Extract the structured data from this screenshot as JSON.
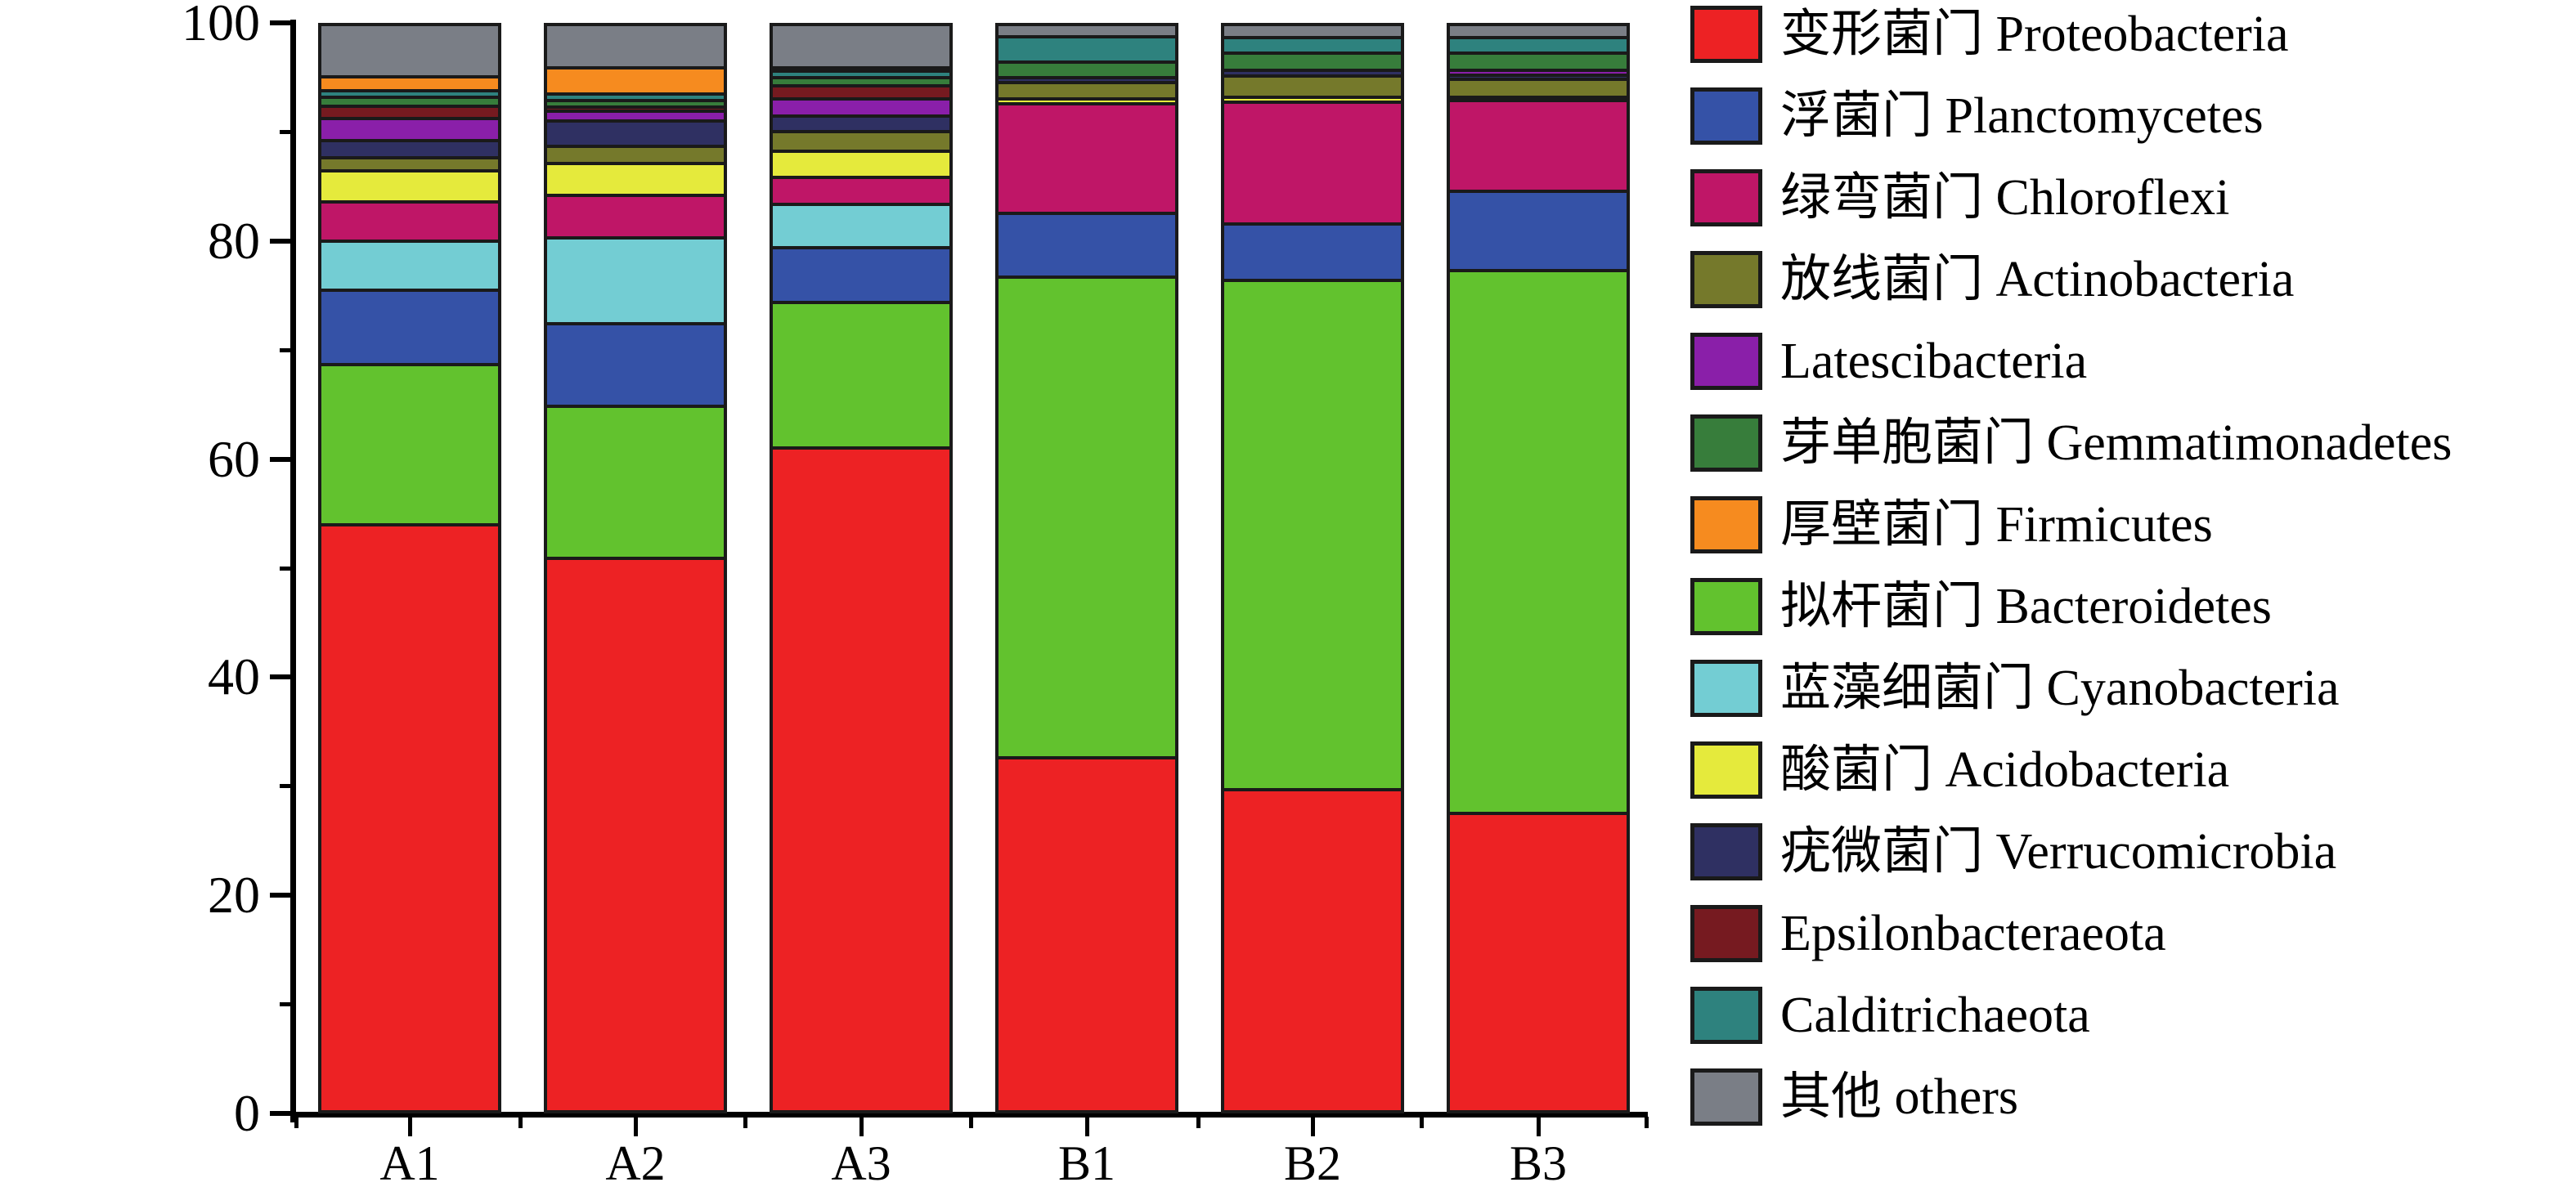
{
  "chart_data": {
    "type": "bar",
    "stacked": true,
    "unit": "percent",
    "title": "",
    "xlabel": "",
    "ylabel": "",
    "grid": false,
    "legend_position": "right",
    "categories": [
      "A1",
      "A2",
      "A3",
      "B1",
      "B2",
      "B3"
    ],
    "y_axis": {
      "min": 0,
      "max": 100,
      "major_ticks": [
        0,
        20,
        40,
        60,
        80,
        100
      ],
      "minor_tick_step": 10,
      "tick_labels": [
        "0",
        "20",
        "40",
        "60",
        "80",
        "100"
      ]
    },
    "series": [
      {
        "name_zh": "变形菌门",
        "name_en": "Proteobacteria",
        "label": "变形菌门 Proteobacteria",
        "color": "#ED2224",
        "values": [
          54.0,
          50.9,
          61.0,
          32.6,
          29.65,
          27.5
        ]
      },
      {
        "name_zh": "浮菌门",
        "name_en": "Planctomycetes",
        "label": "浮菌门 Planctomycetes",
        "color": "#3552A7",
        "values": [
          6.75,
          7.55,
          5.0,
          5.85,
          5.2,
          7.3
        ]
      },
      {
        "name_zh": "绿弯菌门",
        "name_en": "Chloroflexi",
        "label": "绿弯菌门 Chloroflexi",
        "color": "#BF1667",
        "values": [
          3.55,
          3.9,
          2.5,
          10.05,
          11.2,
          8.3
        ]
      },
      {
        "name_zh": "放线菌门",
        "name_en": "Actinobacteria",
        "label": "放线菌门 Actinobacteria",
        "color": "#75792B",
        "values": [
          1.15,
          1.6,
          1.75,
          1.5,
          1.9,
          1.7
        ]
      },
      {
        "name_zh": "",
        "name_en": "Latescibacteria",
        "label": "Latescibacteria",
        "color": "#8A1FA9",
        "values": [
          2.05,
          0.9,
          1.55,
          0,
          0,
          0.45
        ]
      },
      {
        "name_zh": "芽单胞菌门",
        "name_en": "Gemmatimonadetes",
        "label": "芽单胞菌门 Gemmatimonadetes",
        "color": "#377D3B",
        "values": [
          0.85,
          0.65,
          0.8,
          1.4,
          1.55,
          1.55
        ]
      },
      {
        "name_zh": "厚壁菌门",
        "name_en": "Firmicutes",
        "label": "厚壁菌门 Firmicutes",
        "color": "#F68B1F",
        "values": [
          1.3,
          2.4,
          0.3,
          0,
          0,
          0
        ]
      },
      {
        "name_zh": "拟杆菌门",
        "name_en": "Bacteroidetes",
        "label": "拟杆菌门 Bacteroidetes",
        "color": "#62C22E",
        "values": [
          14.7,
          13.95,
          13.35,
          44.1,
          46.7,
          49.75
        ]
      },
      {
        "name_zh": "蓝藻细菌门",
        "name_en": "Cyanobacteria",
        "label": "蓝藻细菌门 Cyanobacteria",
        "color": "#73CDD3",
        "values": [
          4.55,
          7.9,
          4.0,
          0,
          0,
          0
        ]
      },
      {
        "name_zh": "酸菌门",
        "name_en": "Acidobacteria",
        "label": "酸菌门 Acidobacteria",
        "color": "#E5EA3C",
        "values": [
          2.9,
          2.9,
          2.4,
          0.45,
          0.45,
          0.3
        ]
      },
      {
        "name_zh": "疣微菌门",
        "name_en": "Verrucomicrobia",
        "label": "疣微菌门 Verrucomicrobia",
        "color": "#2F3062",
        "values": [
          1.6,
          2.3,
          1.45,
          0.45,
          0.55,
          0.35
        ]
      },
      {
        "name_zh": "",
        "name_en": "Epsilonbacteraeota",
        "label": "Epsilonbacteraeota",
        "color": "#761A20",
        "values": [
          1.1,
          0.35,
          1.2,
          0,
          0,
          0
        ]
      },
      {
        "name_zh": "",
        "name_en": "Calditrichaeota",
        "label": "Calditrichaeota",
        "color": "#2E827E",
        "values": [
          0.55,
          0.6,
          0.6,
          2.3,
          1.45,
          1.45
        ]
      },
      {
        "name_zh": "其他",
        "name_en": "others",
        "label": "其他 others",
        "color": "#7A7E86",
        "values": [
          4.95,
          4.1,
          4.1,
          1.3,
          1.35,
          1.35
        ]
      }
    ],
    "stack_order_bottom_to_top": [
      "Proteobacteria",
      "Bacteroidetes",
      "Planctomycetes",
      "Cyanobacteria",
      "Chloroflexi",
      "Acidobacteria",
      "Actinobacteria",
      "Verrucomicrobia",
      "Latescibacteria",
      "Epsilonbacteraeota",
      "Gemmatimonadetes",
      "Calditrichaeota",
      "Firmicutes",
      "others"
    ]
  },
  "colors": {
    "background": "#ffffff",
    "axis": "#000000",
    "segment_border": "#1a1a1a"
  }
}
